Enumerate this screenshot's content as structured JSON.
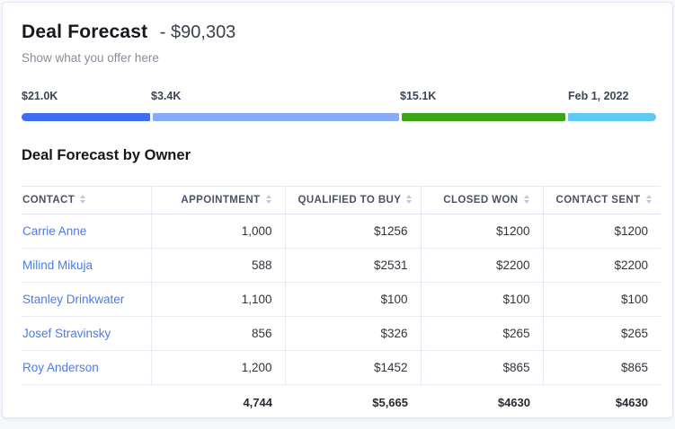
{
  "card": {
    "title": "Deal Forecast",
    "amount": "- $90,303",
    "subtitle": "Show what you offer here"
  },
  "forecast_bar": {
    "segments": [
      {
        "label": "$21.0K",
        "color": "#3d6ef0",
        "size": 143
      },
      {
        "label": "$3.4K",
        "color": "#8aacf8",
        "size": 275
      },
      {
        "label": "$15.1K",
        "color": "#3ba417",
        "size": 183
      },
      {
        "label": "Feb 1, 2022",
        "color": "#5fc8f3",
        "size": 98
      }
    ]
  },
  "table": {
    "title": "Deal Forecast by Owner",
    "columns": [
      {
        "label": "CONTACT"
      },
      {
        "label": "APPOINTMENT"
      },
      {
        "label": "QUALIFIED TO BUY"
      },
      {
        "label": "CLOSED WON"
      },
      {
        "label": "CONTACT SENT"
      }
    ],
    "rows": [
      {
        "contact": "Carrie Anne",
        "appointment": "1,000",
        "qualified_to_buy": "$1256",
        "closed_won": "$1200",
        "contact_sent": "$1200"
      },
      {
        "contact": "Milind Mikuja",
        "appointment": "588",
        "qualified_to_buy": "$2531",
        "closed_won": "$2200",
        "contact_sent": "$2200"
      },
      {
        "contact": "Stanley Drinkwater",
        "appointment": "1,100",
        "qualified_to_buy": "$100",
        "closed_won": "$100",
        "contact_sent": "$100"
      },
      {
        "contact": "Josef Stravinsky",
        "appointment": "856",
        "qualified_to_buy": "$326",
        "closed_won": "$265",
        "contact_sent": "$265"
      },
      {
        "contact": "Roy Anderson",
        "appointment": "1,200",
        "qualified_to_buy": "$1452",
        "closed_won": "$865",
        "contact_sent": "$865"
      }
    ],
    "totals": {
      "appointment": "4,744",
      "qualified_to_buy": "$5,665",
      "closed_won": "$4630",
      "contact_sent": "$4630"
    }
  },
  "colors": {
    "link": "#4a7ce8",
    "header_text": "#4b5266",
    "border": "#e8eaf2"
  }
}
